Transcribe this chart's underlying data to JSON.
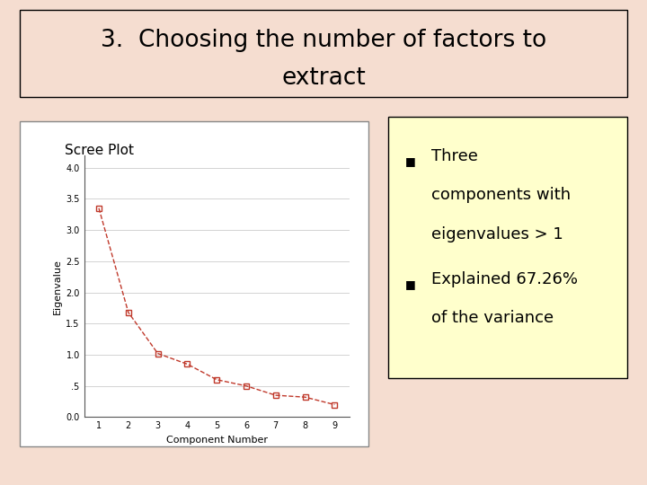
{
  "title_line1": "3.  Choosing the number of factors to",
  "title_line2": "extract",
  "background_color": "#F5DDD0",
  "title_fontsize": 19,
  "scree_title": "Scree Plot",
  "xlabel": "Component Number",
  "ylabel": "Eigenvalue",
  "x_data": [
    1,
    2,
    3,
    4,
    5,
    6,
    7,
    8,
    9
  ],
  "y_data": [
    3.35,
    1.68,
    1.02,
    0.85,
    0.6,
    0.5,
    0.35,
    0.32,
    0.2
  ],
  "line_color": "#C0392B",
  "ylim": [
    0.0,
    4.2
  ],
  "ytick_labels": [
    "0.0",
    ".5",
    "1.0",
    "1.5",
    "2.0",
    "2.5",
    "3.0",
    "3.5",
    "4.0"
  ],
  "ytick_vals": [
    0.0,
    0.5,
    1.0,
    1.5,
    2.0,
    2.5,
    3.0,
    3.5,
    4.0
  ],
  "xticks": [
    1,
    2,
    3,
    4,
    5,
    6,
    7,
    8,
    9
  ],
  "scree_bg": "#F0F0F0",
  "plot_area_bg": "#FFFFFF",
  "bullet1_line1": "Three",
  "bullet1_line2": "components with",
  "bullet1_line3": "eigenvalues > 1",
  "bullet2_line1": "Explained 67.26%",
  "bullet2_line2": "of the variance",
  "bullet_box_color": "#FFFFCC",
  "bullet_fontsize": 13
}
